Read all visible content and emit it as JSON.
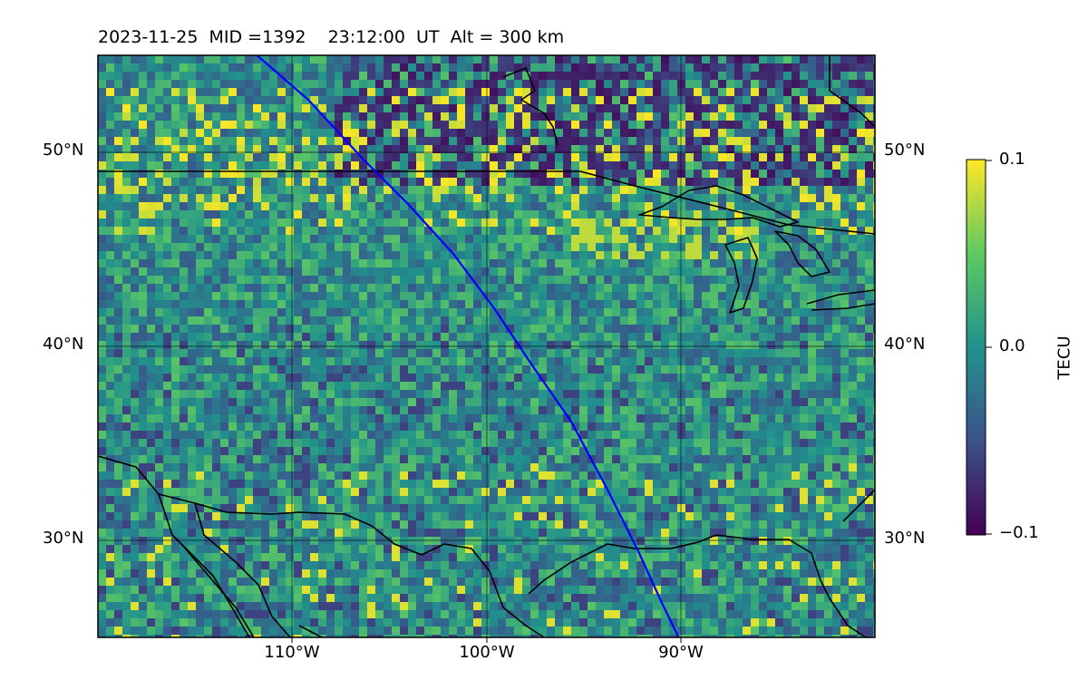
{
  "title": "2023-11-25  MID =1392    23:12:00  UT  Alt = 300 km",
  "map": {
    "extent": {
      "lon_min": -120,
      "lon_max": -80.5,
      "lat_min": 25,
      "lat_max": 55
    },
    "lat_ticks": [
      "50°N",
      "40°N",
      "30°N"
    ],
    "lon_ticks": [
      "110°W",
      "100°W",
      "90°W"
    ],
    "gridlines": true,
    "colormap": "viridis",
    "track_color": "#0000ff"
  },
  "colorbar": {
    "label": "TECU",
    "ticks": [
      "0.1",
      "0.0",
      "−0.1"
    ],
    "vmin": -0.1,
    "vmax": 0.1
  }
}
